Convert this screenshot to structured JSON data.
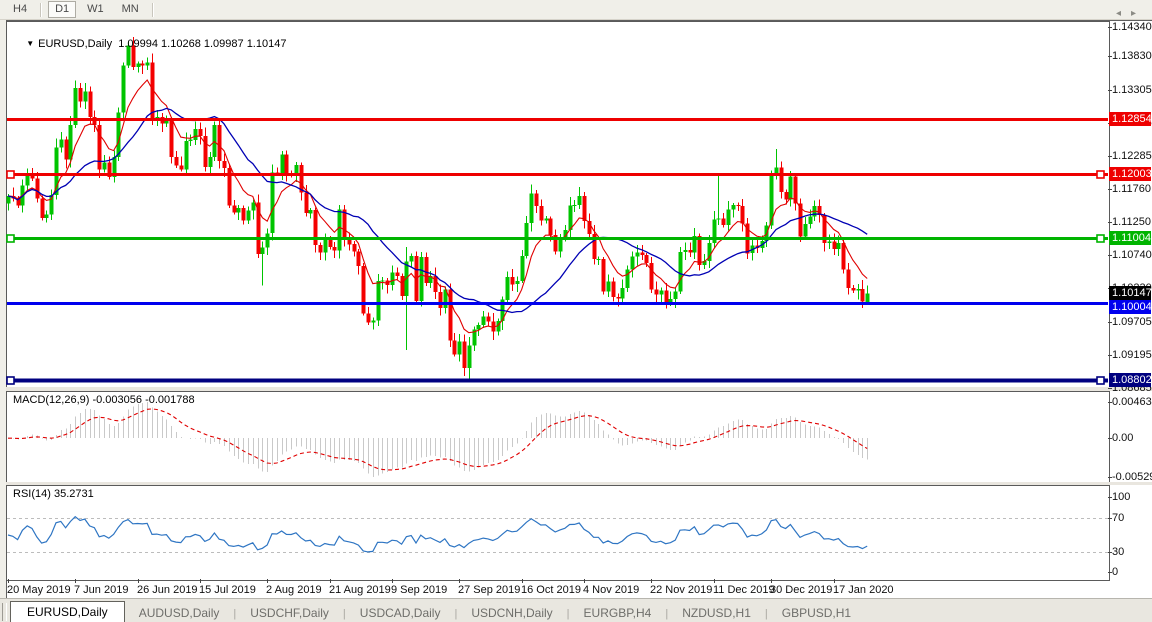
{
  "toolbar": {
    "buttons": [
      "H4",
      "D1",
      "W1",
      "MN"
    ],
    "active": "D1"
  },
  "chart": {
    "title_symbol": "EURUSD,Daily",
    "title_ohlc": "1.09994 1.10268 1.09987 1.10147",
    "macd_label": "MACD(12,26,9) -0.003056 -0.001788",
    "rsi_label": "RSI(14) 35.2731"
  },
  "price_axis": {
    "ticks": [
      "1.14340",
      "1.13830",
      "1.13305",
      "1.12795",
      "1.12285",
      "1.11760",
      "1.11250",
      "1.10740",
      "1.10230",
      "1.09705",
      "1.09195",
      "1.08685"
    ],
    "bid_tag": {
      "text": "1.10147",
      "price": 1.10147,
      "color": "#000000"
    }
  },
  "macd_axis": [
    "0.00463",
    "0.00",
    "-0.005299"
  ],
  "rsi_axis": [
    "100",
    "70",
    "30",
    "0"
  ],
  "date_axis": [
    "20 May 2019",
    "7 Jun 2019",
    "26 Jun 2019",
    "15 Jul 2019",
    "2 Aug 2019",
    "21 Aug 2019",
    "9 Sep 2019",
    "27 Sep 2019",
    "16 Oct 2019",
    "4 Nov 2019",
    "22 Nov 2019",
    "11 Dec 2019",
    "30 Dec 2019",
    "17 Jan 2020"
  ],
  "tabs": {
    "items": [
      {
        "label": "EURUSD,Daily",
        "active": true
      },
      {
        "label": "AUDUSD,Daily",
        "active": false
      },
      {
        "label": "USDCHF,Daily",
        "active": false
      },
      {
        "label": "USDCAD,Daily",
        "active": false
      },
      {
        "label": "USDCNH,Daily",
        "active": false
      },
      {
        "label": "EURGBP,H4",
        "active": false
      },
      {
        "label": "NZDUSD,H1",
        "active": false
      },
      {
        "label": "GBPUSD,H1",
        "active": false
      }
    ],
    "scroll_left": "◂",
    "scroll_right": "▸"
  },
  "chart_data": {
    "type": "candlestick",
    "symbol": "EURUSD",
    "timeframe": "Daily",
    "current": {
      "open": 1.09994,
      "high": 1.10268,
      "low": 1.09987,
      "close": 1.10147
    },
    "colors": {
      "bull": "#00c400",
      "bear": "#f40000",
      "ma_fast": "#e00000",
      "ma_slow": "#0000b4",
      "macd_hist": "#c9c9c9",
      "macd_signal": "#e00000",
      "rsi_line": "#2e75c3",
      "rsi_levels": "#bcbcbc"
    },
    "closes": [
      1.1166,
      1.1162,
      1.1151,
      1.1182,
      1.1201,
      1.1193,
      1.1162,
      1.1132,
      1.1137,
      1.1167,
      1.1241,
      1.1253,
      1.1222,
      1.1276,
      1.1333,
      1.1312,
      1.1328,
      1.1288,
      1.1276,
      1.1207,
      1.1218,
      1.1195,
      1.1226,
      1.1295,
      1.1368,
      1.1399,
      1.1366,
      1.1371,
      1.1368,
      1.1373,
      1.1285,
      1.1288,
      1.1278,
      1.1283,
      1.1226,
      1.1213,
      1.1207,
      1.1251,
      1.1253,
      1.127,
      1.1259,
      1.1211,
      1.1226,
      1.1276,
      1.122,
      1.1209,
      1.1151,
      1.114,
      1.1147,
      1.1128,
      1.1143,
      1.1156,
      1.1076,
      1.1086,
      1.1108,
      1.1202,
      1.12,
      1.123,
      1.12,
      1.1199,
      1.1214,
      1.1171,
      1.1139,
      1.1144,
      1.109,
      1.1078,
      1.1098,
      1.1087,
      1.1081,
      1.1145,
      1.1101,
      1.1091,
      1.108,
      1.1057,
      1.0984,
      1.097,
      1.0973,
      1.1034,
      1.1035,
      1.1028,
      1.1047,
      1.1042,
      1.1011,
      1.1064,
      1.1073,
      1.1003,
      1.1071,
      1.1031,
      1.1042,
      1.1017,
      1.0992,
      1.1021,
      1.0942,
      1.092,
      1.094,
      1.0899,
      1.0934,
      1.0959,
      1.0966,
      1.0979,
      1.0971,
      1.0956,
      1.0972,
      1.1005,
      1.104,
      1.1029,
      1.1034,
      1.1073,
      1.1124,
      1.117,
      1.115,
      1.1128,
      1.1131,
      1.1105,
      1.108,
      1.1099,
      1.1113,
      1.1151,
      1.1152,
      1.1166,
      1.1127,
      1.1107,
      1.1068,
      1.1068,
      1.1018,
      1.1033,
      1.1009,
      1.1007,
      1.1023,
      1.1052,
      1.1072,
      1.1078,
      1.1074,
      1.1062,
      1.1021,
      1.1013,
      1.1019,
      1.1001,
      1.1006,
      1.1018,
      1.1079,
      1.1082,
      1.1078,
      1.1104,
      1.1059,
      1.1065,
      1.1093,
      1.1129,
      1.1131,
      1.1121,
      1.1145,
      1.1152,
      1.115,
      1.1123,
      1.1077,
      1.1089,
      1.1085,
      1.1096,
      1.112,
      1.1199,
      1.121,
      1.1172,
      1.116,
      1.1196,
      1.1154,
      1.1103,
      1.1122,
      1.1134,
      1.115,
      1.1136,
      1.1093,
      1.1095,
      1.1084,
      1.1093,
      1.1052,
      1.1023,
      1.1019,
      1.1022,
      1.1002,
      1.10147
    ],
    "wick_overrides": {
      "26": [
        1.1412,
        null
      ],
      "53": [
        null,
        1.1027
      ],
      "83": [
        1.1087,
        1.0927
      ],
      "96": [
        null,
        1.08802
      ],
      "148": [
        1.1199,
        null
      ],
      "160": [
        1.1239,
        null
      ],
      "178": [
        null,
        1.0992
      ]
    },
    "date_tick_indices": [
      0,
      14,
      27,
      40,
      54,
      67,
      80,
      94,
      107,
      120,
      134,
      147,
      159,
      172
    ],
    "levels": [
      {
        "price": 1.12854,
        "color": "#ee0000",
        "width": 3,
        "handles": false,
        "tag": "1.12854"
      },
      {
        "price": 1.12003,
        "color": "#ee0000",
        "width": 3,
        "handles": true,
        "tag": "1.12003"
      },
      {
        "price": 1.11004,
        "color": "#00b400",
        "width": 3,
        "handles": true,
        "tag": "1.11004"
      },
      {
        "price": 1.10004,
        "color": "#0000ee",
        "width": 3,
        "handles": false,
        "tag": "1.10004"
      },
      {
        "price": 1.08802,
        "color": "#000080",
        "width": 4,
        "handles": true,
        "tag": "1.08802"
      }
    ],
    "moving_averages": [
      {
        "kind": "ema",
        "period": 8,
        "color": "#e00000"
      },
      {
        "kind": "sma",
        "period": 21,
        "color": "#0000b4"
      }
    ],
    "indicators": [
      {
        "name": "MACD",
        "params": [
          12,
          26,
          9
        ],
        "values": [
          -0.003056,
          -0.001788
        ]
      },
      {
        "name": "RSI",
        "period": 14,
        "value": 35.2731,
        "levels": [
          70,
          30
        ]
      }
    ]
  }
}
